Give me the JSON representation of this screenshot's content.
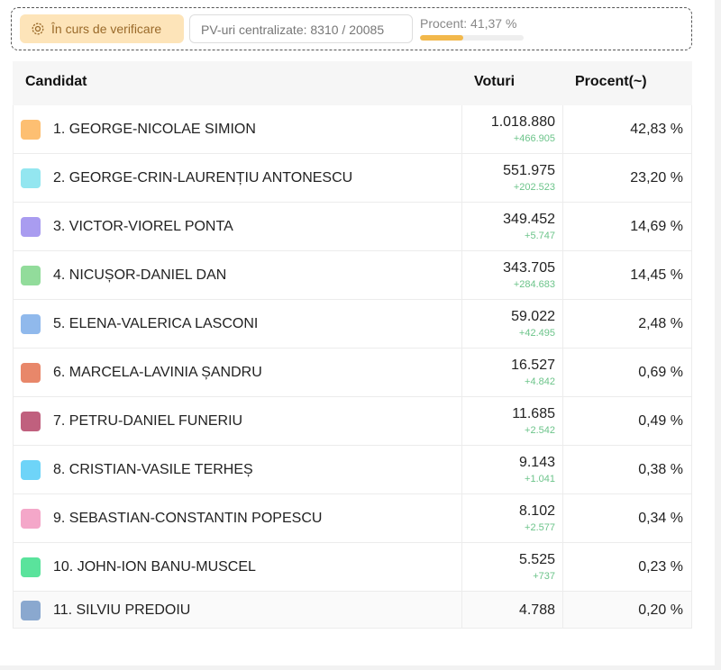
{
  "status": {
    "badge": "În curs de verificare",
    "pv": "PV-uri centralizate: 8310 / 20085",
    "percent_label": "Procent: 41,37 %",
    "percent_value": 41.37
  },
  "table": {
    "headers": [
      "Candidat",
      "Voturi",
      "Procent(~)"
    ],
    "rows": [
      {
        "name": "1. GEORGE-NICOLAE SIMION",
        "color": "#fdbf72",
        "votes": "1.018.880",
        "delta": "+466.905",
        "percent": "42,83 %"
      },
      {
        "name": "2. GEORGE-CRIN-LAURENȚIU ANTONESCU",
        "color": "#93e6f0",
        "votes": "551.975",
        "delta": "+202.523",
        "percent": "23,20 %"
      },
      {
        "name": "3. VICTOR-VIOREL PONTA",
        "color": "#a99cf0",
        "votes": "349.452",
        "delta": "+5.747",
        "percent": "14,69 %"
      },
      {
        "name": "4. NICUȘOR-DANIEL DAN",
        "color": "#92dc9b",
        "votes": "343.705",
        "delta": "+284.683",
        "percent": "14,45 %"
      },
      {
        "name": "5. ELENA-VALERICA LASCONI",
        "color": "#90b9ec",
        "votes": "59.022",
        "delta": "+42.495",
        "percent": "2,48 %"
      },
      {
        "name": "6. MARCELA-LAVINIA ȘANDRU",
        "color": "#e8876a",
        "votes": "16.527",
        "delta": "+4.842",
        "percent": "0,69 %"
      },
      {
        "name": "7. PETRU-DANIEL FUNERIU",
        "color": "#c0607e",
        "votes": "11.685",
        "delta": "+2.542",
        "percent": "0,49 %"
      },
      {
        "name": "8. CRISTIAN-VASILE TERHEȘ",
        "color": "#6ed4f8",
        "votes": "9.143",
        "delta": "+1.041",
        "percent": "0,38 %"
      },
      {
        "name": "9. SEBASTIAN-CONSTANTIN POPESCU",
        "color": "#f4a7c9",
        "votes": "8.102",
        "delta": "+2.577",
        "percent": "0,34 %"
      },
      {
        "name": "10. JOHN-ION BANU-MUSCEL",
        "color": "#5ae39c",
        "votes": "5.525",
        "delta": "+737",
        "percent": "0,23 %"
      },
      {
        "name": "11. SILVIU PREDOIU",
        "color": "#8aa8cf",
        "votes": "4.788",
        "percent": "0,20 %"
      }
    ]
  }
}
